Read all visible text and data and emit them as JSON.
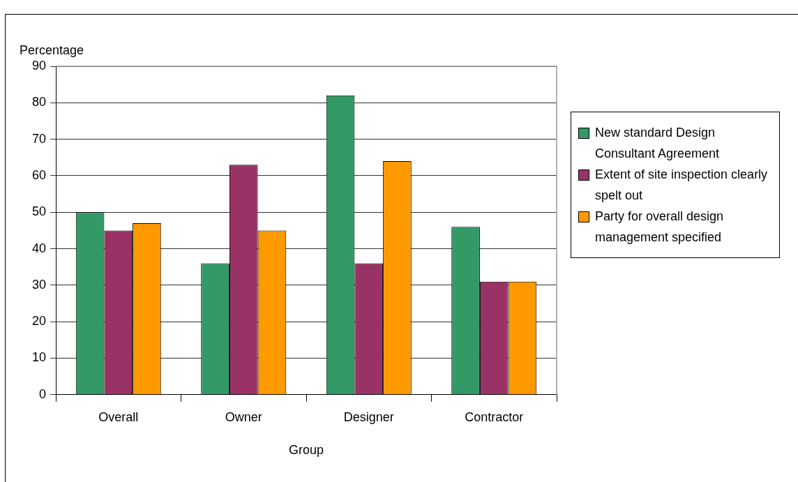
{
  "chart_data": {
    "type": "bar",
    "ylabel": "Percentage",
    "xlabel": "Group",
    "categories": [
      "Overall",
      "Owner",
      "Designer",
      "Contractor"
    ],
    "series": [
      {
        "name": "New standard Design Consultant Agreement",
        "color": "#339966",
        "values": [
          50,
          36,
          82,
          46
        ]
      },
      {
        "name": "Extent of site inspection clearly spelt out",
        "color": "#993366",
        "values": [
          45,
          63,
          36,
          31
        ]
      },
      {
        "name": "Party for overall design management specified",
        "color": "#ff9900",
        "values": [
          47,
          45,
          64,
          31
        ]
      }
    ],
    "ylim": [
      0,
      90
    ],
    "yticks": [
      0,
      10,
      20,
      30,
      40,
      50,
      60,
      70,
      80,
      90
    ],
    "grid": "y",
    "legend": "right"
  }
}
